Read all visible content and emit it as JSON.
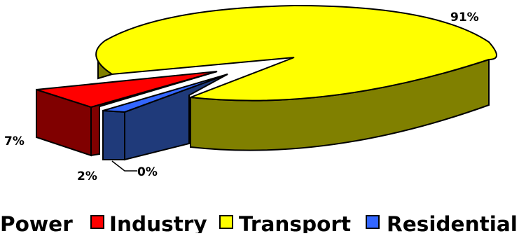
{
  "chart_data": {
    "type": "pie",
    "style": "3d-exploded",
    "legend_position": "bottom",
    "categories": [
      "Power",
      "Industry",
      "Transport",
      "Residential"
    ],
    "values": [
      0,
      7,
      91,
      2
    ],
    "data_labels": [
      "0%",
      "7%",
      "91%",
      "2%"
    ],
    "legend": [
      {
        "label": "Power",
        "color": "#000080",
        "swatch_visible": false
      },
      {
        "label": "Industry",
        "color": "#ff0000"
      },
      {
        "label": "Transport",
        "color": "#ffff00"
      },
      {
        "label": "Residential",
        "color": "#3366ff"
      }
    ],
    "colors": {
      "Industry": {
        "top": "#ff0000",
        "side": "#800000"
      },
      "Transport": {
        "top": "#ffff00",
        "side": "#808000"
      },
      "Residential": {
        "top": "#3366ff",
        "side": "#1f3a7a"
      }
    }
  }
}
